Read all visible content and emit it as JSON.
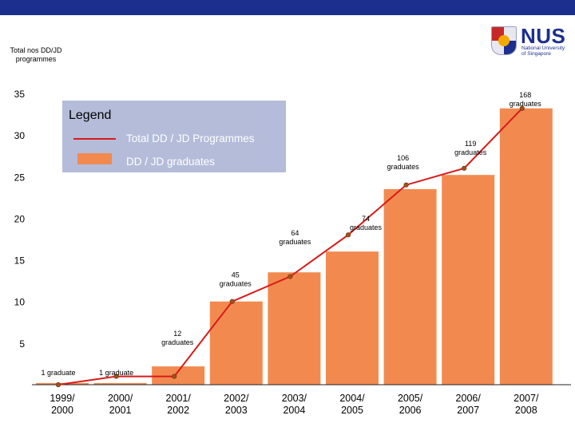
{
  "header": {
    "logo_text": "NUS",
    "logo_subtext": "National University of Singapore",
    "accent_color": "#1c2f8e"
  },
  "chart_data": {
    "type": "bar",
    "ylabel": "Total nos DD/JD programmes",
    "ylim": [
      0,
      35
    ],
    "yticks": [
      5,
      10,
      15,
      20,
      25,
      30,
      35
    ],
    "categories": [
      "1999/ 2000",
      "2000/ 2001",
      "2001/ 2002",
      "2002/ 2003",
      "2003/ 2004",
      "2004/ 2005",
      "2005/ 2006",
      "2006/ 2007",
      "2007/ 2008"
    ],
    "series": [
      {
        "name": "DD / JD graduates",
        "kind": "bar",
        "color": "#f28a50",
        "values": [
          0.2,
          0.2,
          2.2,
          10.0,
          13.5,
          16.0,
          23.5,
          25.2,
          33.2
        ],
        "labels": [
          "1 graduate",
          "1 graduate",
          "12 graduates",
          "45 graduates",
          "64 graduates",
          "74 graduates",
          "106 graduates",
          "119 graduates",
          "168 graduates"
        ]
      },
      {
        "name": "Total DD / JD Programmes",
        "kind": "line",
        "color": "#d81a1a",
        "values": [
          0,
          1,
          1,
          10,
          13,
          18,
          24,
          26,
          33.2
        ]
      }
    ],
    "legend": {
      "title": "Legend",
      "placement": "top-left",
      "background": "#b4bcd9"
    }
  }
}
